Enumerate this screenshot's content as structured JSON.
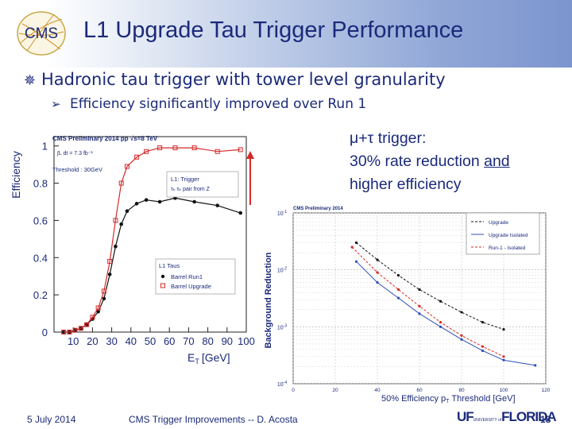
{
  "slide": {
    "title": "L1 Upgrade Tau Trigger Performance",
    "bullet_main": "Hadronic tau trigger with tower level granularity",
    "bullet_sub": "Efficiency significantly improved over Run 1",
    "note": {
      "line1": "μ+τ trigger:",
      "line2_pre": "30% rate reduction ",
      "line2_ul": "and",
      "line3": "higher efficiency"
    },
    "footer": {
      "date": "5 July 2014",
      "center": "CMS Trigger Improvements  -- D. Acosta",
      "page": "18"
    },
    "logo_text": "CMS",
    "uf_logo": {
      "main": "UF",
      "small": "UNIVERSITY of",
      "name": "FLORIDA"
    }
  },
  "chart_data": [
    {
      "type": "scatter",
      "header": "CMS Preliminary 2014 pp  √s=8 TeV",
      "lumi": "∫L dt = 7.3 fb⁻¹",
      "threshold": "Threshold : 30GeV",
      "annotation": "L1: Trigger",
      "annotation2": "τₕ τₕ pair from Z",
      "xlabel": "E",
      "xlabel_sub": "T",
      "xlabel_unit": "[GeV]",
      "ylabel": "Efficiency",
      "xlim": [
        0,
        100
      ],
      "ylim": [
        0,
        1.05
      ],
      "xticks": [
        10,
        20,
        30,
        40,
        50,
        60,
        70,
        80,
        90,
        100
      ],
      "yticks": [
        0,
        0.2,
        0.4,
        0.6,
        0.8,
        1
      ],
      "ytick_labels": [
        "0",
        "0.2",
        "0.4",
        "0.6",
        "0.8",
        "1"
      ],
      "legend_title": "L1 Taus",
      "legend_position": "bottom-right",
      "series": [
        {
          "name": "Barrel  Run1",
          "marker": "filled-circle",
          "color": "#111111",
          "x": [
            5,
            8,
            11,
            14,
            17,
            20,
            23,
            26,
            29,
            32,
            35,
            38,
            43,
            48,
            55,
            63,
            73,
            85,
            97
          ],
          "y": [
            0.0,
            0.0,
            0.01,
            0.02,
            0.04,
            0.07,
            0.11,
            0.18,
            0.31,
            0.46,
            0.58,
            0.65,
            0.69,
            0.71,
            0.7,
            0.72,
            0.7,
            0.68,
            0.64
          ]
        },
        {
          "name": "Barrel  Upgrade",
          "marker": "open-square",
          "color": "#d62a2a",
          "x": [
            5,
            8,
            11,
            14,
            17,
            20,
            23,
            26,
            29,
            32,
            35,
            38,
            43,
            48,
            55,
            63,
            73,
            85,
            97
          ],
          "y": [
            0.0,
            0.0,
            0.01,
            0.02,
            0.04,
            0.08,
            0.13,
            0.22,
            0.38,
            0.6,
            0.8,
            0.89,
            0.94,
            0.97,
            0.99,
            0.99,
            0.99,
            0.97,
            0.98
          ]
        }
      ]
    },
    {
      "type": "line",
      "header": "CMS Preliminary 2014",
      "xlabel": "50% Efficiency p",
      "xlabel_sub": "T",
      "xlabel_unit": "Threshold [GeV]",
      "ylabel": "Background Reduction",
      "log_y": true,
      "xlim": [
        0,
        120
      ],
      "ylim": [
        0.0001,
        0.1
      ],
      "xticks": [
        0,
        20,
        40,
        60,
        80,
        100,
        120
      ],
      "legend_position": "top-right",
      "series": [
        {
          "name": "Upgrade",
          "color": "#111111",
          "style": "dashed",
          "x": [
            30,
            40,
            50,
            60,
            70,
            80,
            90,
            100
          ],
          "y": [
            0.03,
            0.015,
            0.008,
            0.0045,
            0.0028,
            0.0018,
            0.0012,
            0.0009
          ]
        },
        {
          "name": "Upgrade Isolated",
          "color": "#2f4fb8",
          "style": "solid",
          "x": [
            30,
            40,
            50,
            60,
            70,
            80,
            90,
            100,
            115
          ],
          "y": [
            0.014,
            0.006,
            0.0032,
            0.0017,
            0.001,
            0.0006,
            0.00038,
            0.00026,
            0.00021
          ]
        },
        {
          "name": "Run-1 - Isolated",
          "color": "#d62a2a",
          "style": "dashed",
          "x": [
            28,
            40,
            50,
            60,
            70,
            80,
            90,
            100
          ],
          "y": [
            0.025,
            0.009,
            0.0045,
            0.0023,
            0.0012,
            0.0007,
            0.00045,
            0.0003
          ]
        }
      ]
    }
  ]
}
